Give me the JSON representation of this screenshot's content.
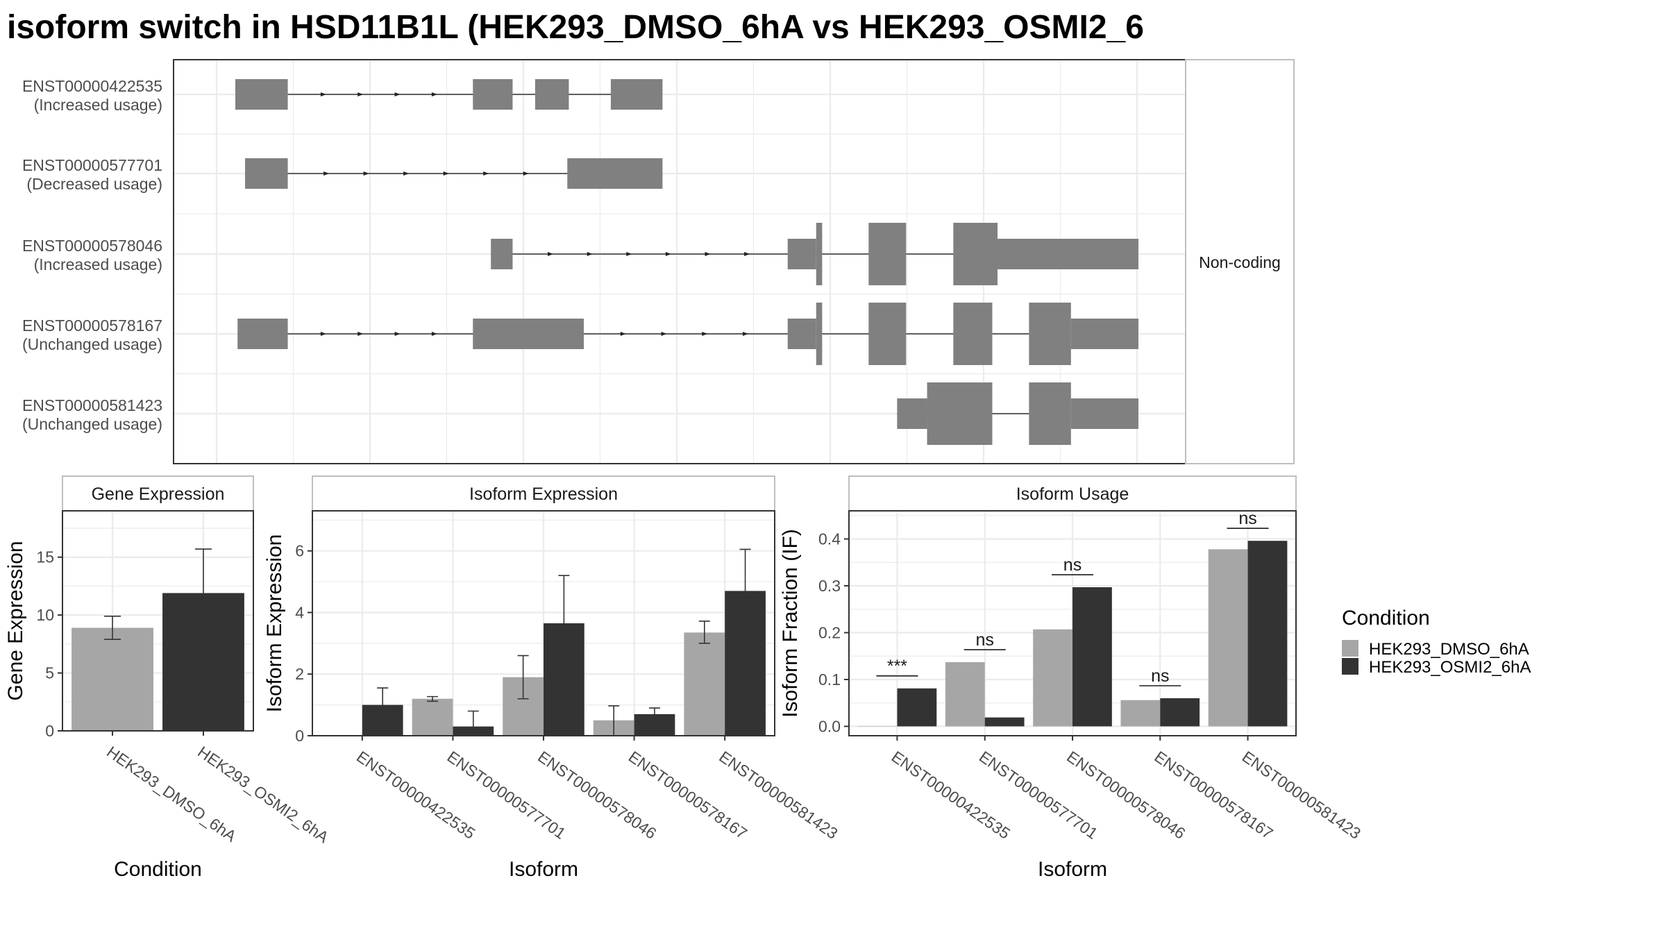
{
  "title": "isoform switch in HSD11B1L (HEK293_DMSO_6hA vs HEK293_OSMI2_6",
  "colors": {
    "dmso": "#a6a6a6",
    "osmi2": "#333333",
    "exon": "#808080",
    "grid": "#ebebeb",
    "panel_border": "#333333",
    "strip_border": "#bfbfbf",
    "text": "#4d4d4d"
  },
  "legend": {
    "title": "Condition",
    "items": [
      {
        "label": "HEK293_DMSO_6hA",
        "color": "#a6a6a6"
      },
      {
        "label": "HEK293_OSMI2_6hA",
        "color": "#333333"
      }
    ]
  },
  "structure": {
    "strip_label": "Non-coding",
    "transcripts": [
      {
        "id": "ENST00000422535",
        "usage": "(Increased usage)",
        "exons": [
          [
            25,
            95,
            1
          ],
          [
            342,
            395,
            1
          ],
          [
            425,
            470,
            1
          ],
          [
            526,
            595,
            1
          ]
        ]
      },
      {
        "id": "ENST00000577701",
        "usage": "(Decreased usage)",
        "exons": [
          [
            38,
            95,
            1
          ],
          [
            468,
            530,
            1
          ],
          [
            526,
            595,
            1
          ]
        ]
      },
      {
        "id": "ENST00000578046",
        "usage": "(Increased usage)",
        "exons": [
          [
            366,
            395,
            1
          ],
          [
            762,
            800,
            1
          ],
          [
            800,
            808,
            2
          ],
          [
            870,
            920,
            2
          ],
          [
            983,
            1042,
            2
          ],
          [
            1042,
            1230,
            1
          ]
        ]
      },
      {
        "id": "ENST00000578167",
        "usage": "(Unchanged usage)",
        "exons": [
          [
            28,
            95,
            1
          ],
          [
            342,
            490,
            1
          ],
          [
            762,
            800,
            1
          ],
          [
            800,
            808,
            2
          ],
          [
            870,
            920,
            2
          ],
          [
            983,
            1035,
            2
          ],
          [
            1084,
            1140,
            2
          ],
          [
            1140,
            1230,
            1
          ]
        ]
      },
      {
        "id": "ENST00000581423",
        "usage": "(Unchanged usage)",
        "exons": [
          [
            908,
            948,
            1
          ],
          [
            948,
            1035,
            2
          ],
          [
            1084,
            1140,
            2
          ],
          [
            1140,
            1230,
            1
          ]
        ]
      }
    ]
  },
  "chart_data": [
    {
      "type": "bar",
      "title": "Gene Expression",
      "xlabel": "Condition",
      "ylabel": "Gene Expression",
      "ylim": [
        0,
        19
      ],
      "yticks": [
        0,
        5,
        10,
        15
      ],
      "categories": [
        "HEK293_DMSO_6hA",
        "HEK293_OSMI2_6hA"
      ],
      "values": [
        8.9,
        11.9
      ],
      "err_low": [
        7.9,
        8.1
      ],
      "err_high": [
        9.9,
        15.7
      ]
    },
    {
      "type": "bar",
      "title": "Isoform Expression",
      "xlabel": "Isoform",
      "ylabel": "Isoform Expression",
      "ylim": [
        0,
        7.3
      ],
      "yticks": [
        0,
        2,
        4,
        6
      ],
      "categories": [
        "ENST00000422535",
        "ENST00000577701",
        "ENST00000578046",
        "ENST00000578167",
        "ENST00000581423"
      ],
      "series": [
        {
          "name": "HEK293_DMSO_6hA",
          "values": [
            0.0,
            1.2,
            1.9,
            0.5,
            3.35
          ],
          "err_low": [
            0.0,
            1.12,
            1.2,
            0.0,
            3.0
          ],
          "err_high": [
            0.0,
            1.27,
            2.6,
            0.97,
            3.72
          ]
        },
        {
          "name": "HEK293_OSMI2_6hA",
          "values": [
            1.0,
            0.3,
            3.65,
            0.7,
            4.7
          ],
          "err_low": [
            0.45,
            0.0,
            2.1,
            0.5,
            3.3
          ],
          "err_high": [
            1.55,
            0.8,
            5.2,
            0.9,
            6.05
          ]
        }
      ]
    },
    {
      "type": "bar",
      "title": "Isoform Usage",
      "xlabel": "Isoform",
      "ylabel": "Isoform Fraction (IF)",
      "ylim": [
        -0.02,
        0.46
      ],
      "yticks": [
        0.0,
        0.1,
        0.2,
        0.3,
        0.4
      ],
      "categories": [
        "ENST00000422535",
        "ENST00000577701",
        "ENST00000578046",
        "ENST00000578167",
        "ENST00000581423"
      ],
      "series": [
        {
          "name": "HEK293_DMSO_6hA",
          "values": [
            0.0,
            0.137,
            0.207,
            0.056,
            0.378
          ]
        },
        {
          "name": "HEK293_OSMI2_6hA",
          "values": [
            0.081,
            0.019,
            0.297,
            0.06,
            0.396
          ]
        }
      ],
      "significance": [
        "***",
        "ns",
        "ns",
        "ns",
        "ns"
      ]
    }
  ]
}
